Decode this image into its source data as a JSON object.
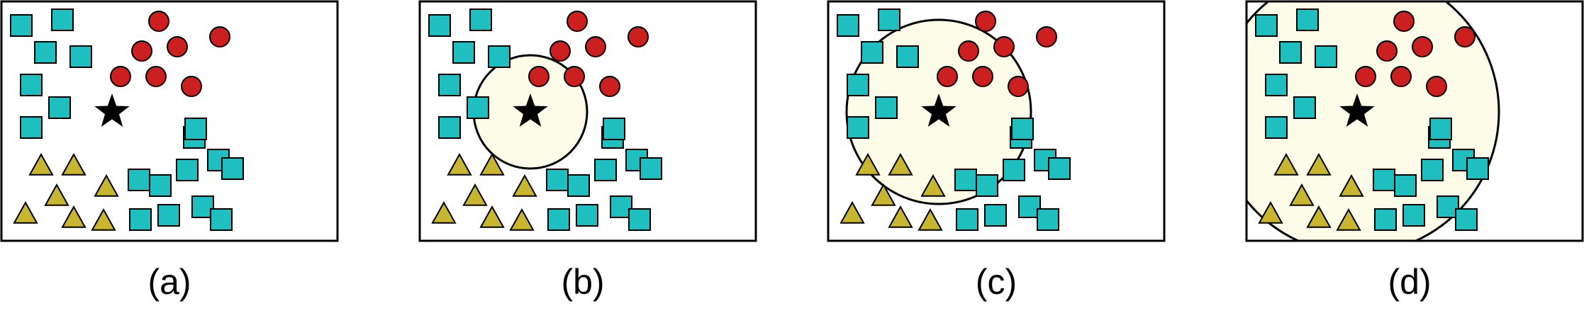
{
  "colors": {
    "background": "#ffffff",
    "frame": "#000000",
    "square": "#20BFBF",
    "circle": "#CC1F1F",
    "triangle": "#C8B630",
    "star": "#000000",
    "neighborhood": "#FDFCE8"
  },
  "panels": [
    {
      "caption": "(a)",
      "neighborhood_radius": 0
    },
    {
      "caption": "(b)",
      "neighborhood_radius": 80
    },
    {
      "caption": "(c)",
      "neighborhood_radius": 130
    },
    {
      "caption": "(d)",
      "neighborhood_radius": 200
    }
  ]
}
